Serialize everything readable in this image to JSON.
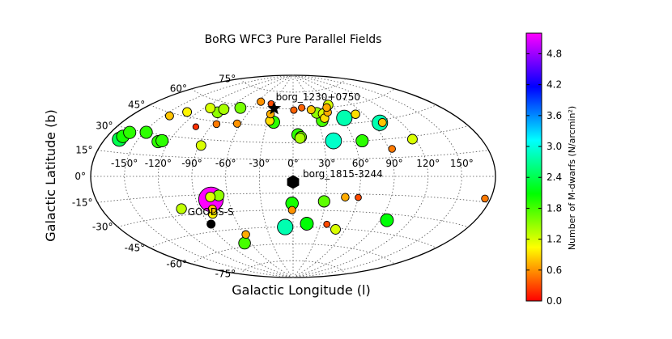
{
  "chart_data": {
    "type": "scatter",
    "projection": "aitoff",
    "title": "BoRG WFC3 Pure Parallel Fields",
    "xlabel": "Galactic Longitude (l)",
    "ylabel": "Galactic Latitude (b)",
    "colorbar": {
      "label": "Number of M-dwarfs (N/arcmin²)",
      "range": [
        0.0,
        5.2
      ],
      "ticks": [
        "0.0",
        "0.6",
        "1.2",
        "1.8",
        "2.4",
        "3.0",
        "3.6",
        "4.2",
        "4.8"
      ],
      "colormap": "gist_rainbow_r"
    },
    "lon_ticks": [
      "-150°",
      "-120°",
      "-90°",
      "-60°",
      "-30°",
      "0°",
      "30°",
      "60°",
      "90°",
      "120°",
      "150°"
    ],
    "lat_ticks": [
      "75°",
      "60°",
      "45°",
      "30°",
      "15°",
      "0°",
      "-15°",
      "-30°",
      "-45°",
      "-60°",
      "-75°"
    ],
    "grid": true,
    "fields": [
      {
        "l": -167,
        "b": 23,
        "v": 2.4
      },
      {
        "l": -166,
        "b": 25,
        "v": 2.0
      },
      {
        "l": -163,
        "b": 28,
        "v": 1.9
      },
      {
        "l": -148,
        "b": 30,
        "v": 1.9
      },
      {
        "l": -144,
        "b": 43,
        "v": 0.8
      },
      {
        "l": -132,
        "b": 48,
        "v": 1.0
      },
      {
        "l": -130,
        "b": 25,
        "v": 1.9
      },
      {
        "l": -127,
        "b": 26,
        "v": 1.9
      },
      {
        "l": -113,
        "b": 54,
        "v": 1.2
      },
      {
        "l": -105,
        "b": 39,
        "v": 0.2
      },
      {
        "l": -98,
        "b": 52,
        "v": 1.5
      },
      {
        "l": -95,
        "b": 55,
        "v": 1.4
      },
      {
        "l": -88,
        "b": 25,
        "v": 1.2
      },
      {
        "l": -86,
        "b": 43,
        "v": 0.5
      },
      {
        "l": -76,
        "b": 58,
        "v": 1.6
      },
      {
        "l": -64,
        "b": 45,
        "v": 0.6
      },
      {
        "l": -55,
        "b": 65,
        "v": 0.6
      },
      {
        "l": -36,
        "b": 64,
        "v": 0.3
      },
      {
        "l": -30,
        "b": 55,
        "v": 0.7
      },
      {
        "l": -28,
        "b": 49,
        "v": 0.9
      },
      {
        "l": -23,
        "b": 48,
        "v": 1.9
      },
      {
        "l": 1,
        "b": 59,
        "v": 0.4
      },
      {
        "l": 5,
        "b": 37,
        "v": 1.9
      },
      {
        "l": 7,
        "b": 34,
        "v": 1.4
      },
      {
        "l": 8,
        "b": 35,
        "v": 1.6
      },
      {
        "l": 13,
        "b": 61,
        "v": 0.4
      },
      {
        "l": 26,
        "b": 59,
        "v": 0.8
      },
      {
        "l": 32,
        "b": 56,
        "v": 1.5
      },
      {
        "l": 35,
        "b": 49,
        "v": 1.8
      },
      {
        "l": 39,
        "b": 51,
        "v": 0.9
      },
      {
        "l": 40,
        "b": 55,
        "v": 1.2
      },
      {
        "l": 40,
        "b": 31,
        "v": 2.9
      },
      {
        "l": 47,
        "b": 56,
        "v": 0.7
      },
      {
        "l": 50,
        "b": 60,
        "v": 0.7
      },
      {
        "l": 55,
        "b": 62,
        "v": 1.2
      },
      {
        "l": 63,
        "b": 50,
        "v": 2.8
      },
      {
        "l": 68,
        "b": 30,
        "v": 1.9
      },
      {
        "l": 80,
        "b": 52,
        "v": 0.9
      },
      {
        "l": 98,
        "b": 43,
        "v": 2.8
      },
      {
        "l": 101,
        "b": 43,
        "v": 0.8
      },
      {
        "l": 93,
        "b": 22,
        "v": 0.5
      },
      {
        "l": 117,
        "b": 28,
        "v": 1.2
      },
      {
        "l": 175,
        "b": -13,
        "v": 0.5
      },
      {
        "l": 48,
        "b": -18,
        "v": 0.7
      },
      {
        "l": 60,
        "b": -18,
        "v": 0.3
      },
      {
        "l": 29,
        "b": -22,
        "v": 1.7
      },
      {
        "l": -1,
        "b": -24,
        "v": 2.0
      },
      {
        "l": -1,
        "b": -30,
        "v": 0.6
      },
      {
        "l": -76,
        "b": -19,
        "v": 5.2
      },
      {
        "l": -76,
        "b": -17,
        "v": 1.2
      },
      {
        "l": -68,
        "b": -16,
        "v": 1.5
      },
      {
        "l": -107,
        "b": -25,
        "v": 1.3
      },
      {
        "l": -78,
        "b": -27,
        "v": 0.8
      },
      {
        "l": -80,
        "b": -31,
        "v": 1.0
      },
      {
        "l": 97,
        "b": -35,
        "v": 2.1
      },
      {
        "l": -58,
        "b": -50,
        "v": 0.7
      },
      {
        "l": -68,
        "b": -57,
        "v": 1.8
      },
      {
        "l": -9,
        "b": -45,
        "v": 2.8
      },
      {
        "l": 15,
        "b": -42,
        "v": 2.1
      },
      {
        "l": 37,
        "b": -42,
        "v": 0.3
      },
      {
        "l": 49,
        "b": -46,
        "v": 1.2
      }
    ],
    "markers": [
      {
        "name": "borg_1230+0750",
        "l": -28,
        "b": 60,
        "symbol": "star"
      },
      {
        "name": "borg_1815-3244",
        "l": 0,
        "b": -5,
        "symbol": "hexagon"
      },
      {
        "name": "GOODS-S",
        "l": -88,
        "b": -39,
        "symbol": "circle"
      }
    ]
  }
}
